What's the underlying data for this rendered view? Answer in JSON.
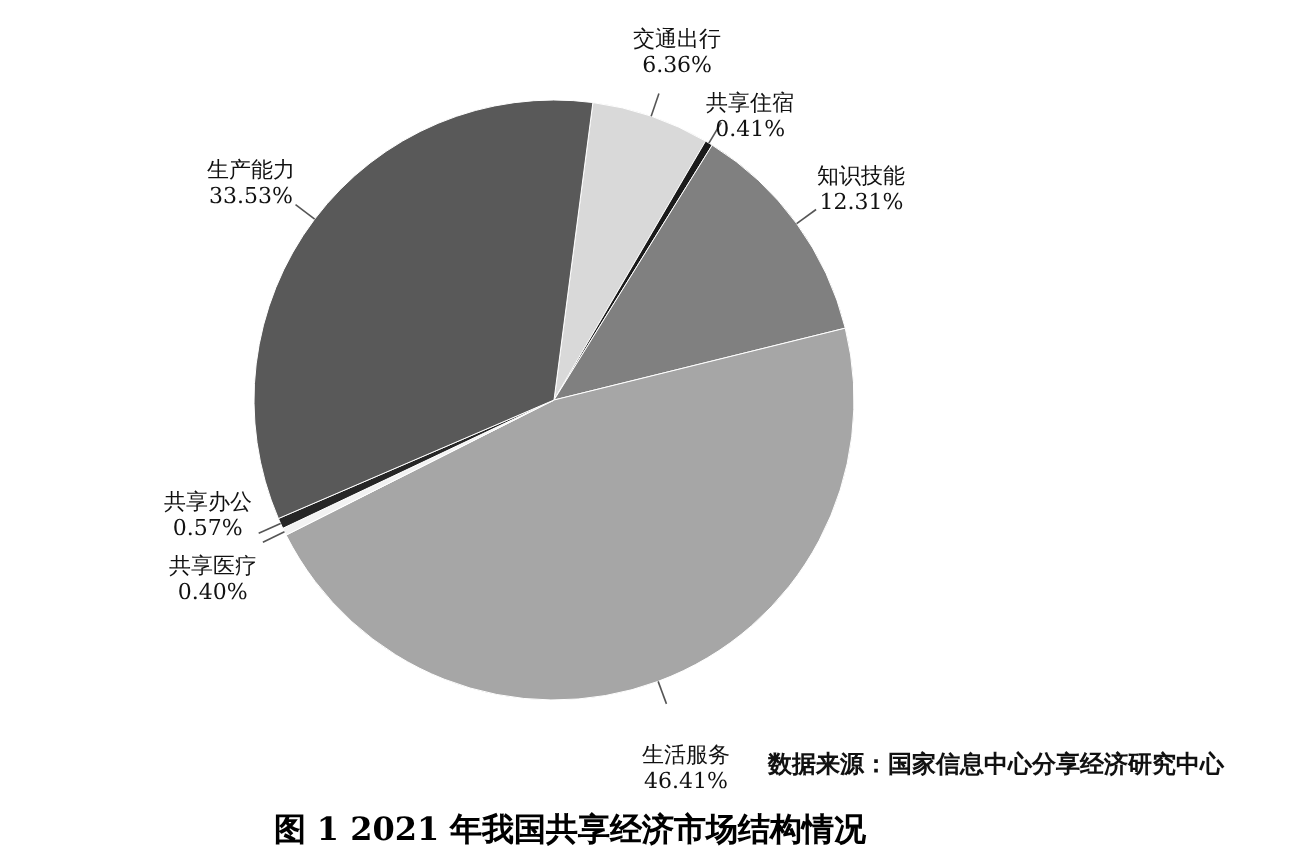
{
  "chart_data": {
    "type": "pie",
    "title": "图 1 2021 年我国共享经济市场结构情况",
    "categories": [
      "交通出行",
      "共享住宿",
      "知识技能",
      "生活服务",
      "共享医疗",
      "共享办公",
      "生产能力"
    ],
    "values": [
      6.36,
      0.41,
      12.31,
      46.41,
      0.4,
      0.57,
      33.53
    ],
    "colors": [
      "#d9d9d9",
      "#1a1a1a",
      "#808080",
      "#a6a6a6",
      "#f2f2f2",
      "#262626",
      "#595959"
    ],
    "value_labels": [
      "6.36%",
      "0.41%",
      "12.31%",
      "46.41%",
      "0.40%",
      "0.57%",
      "33.53%"
    ],
    "annotations": [
      "数据来源：国家信息中心分享经济研究中心"
    ]
  }
}
